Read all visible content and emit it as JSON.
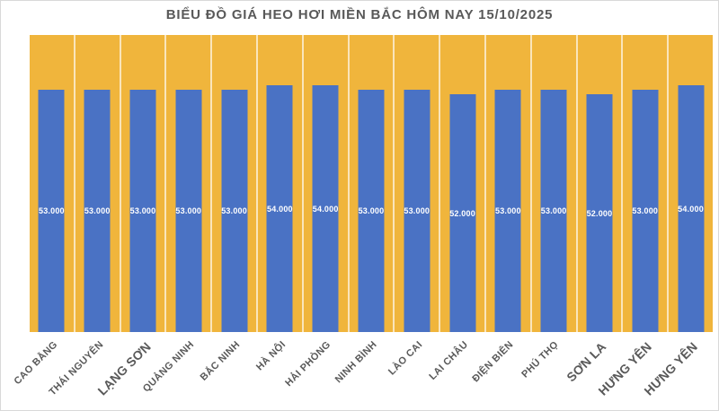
{
  "chart_data": {
    "type": "bar",
    "title": "BIỂU ĐỒ GIÁ HEO HƠI MIỀN BẮC HÔM NAY 15/10/2025",
    "categories": [
      "CAO BẰNG",
      "THÁI NGUYÊN",
      "LẠNG SƠN",
      "QUẢNG NINH",
      "BẮC NINH",
      "HÀ NỘI",
      "HẢI PHÒNG",
      "NINH BÌNH",
      "LÀO CAI",
      "LAI CHÂU",
      "ĐIỆN BIÊN",
      "PHÚ THỌ",
      "SƠN LA",
      "HƯNG YÊN",
      "HƯNG YÊN"
    ],
    "values": [
      53000,
      53000,
      53000,
      53000,
      53000,
      54000,
      54000,
      53000,
      53000,
      52000,
      53000,
      53000,
      52000,
      53000,
      54000
    ],
    "value_labels": [
      "53.000",
      "53.000",
      "53.000",
      "53.000",
      "53.000",
      "54.000",
      "54.000",
      "53.000",
      "53.000",
      "52.000",
      "53.000",
      "53.000",
      "52.000",
      "53.000",
      "54.000"
    ],
    "xlabel": "",
    "ylabel": "",
    "ylim": [
      0,
      65000
    ],
    "y_axis_visible": false,
    "legend_position": "none",
    "grid": "vertical-category-separators",
    "data_label_position": "inside-center"
  },
  "colors": {
    "plot_background": "#F0B53C",
    "bar_fill": "#4A72C4",
    "value_label_text": "#FFFFFF",
    "title_text": "#595959",
    "axis_label_text": "#595959",
    "page_background": "#FFFFFF",
    "separator_line": "#F4E9D8",
    "frame_border": "#D9D9D9"
  }
}
